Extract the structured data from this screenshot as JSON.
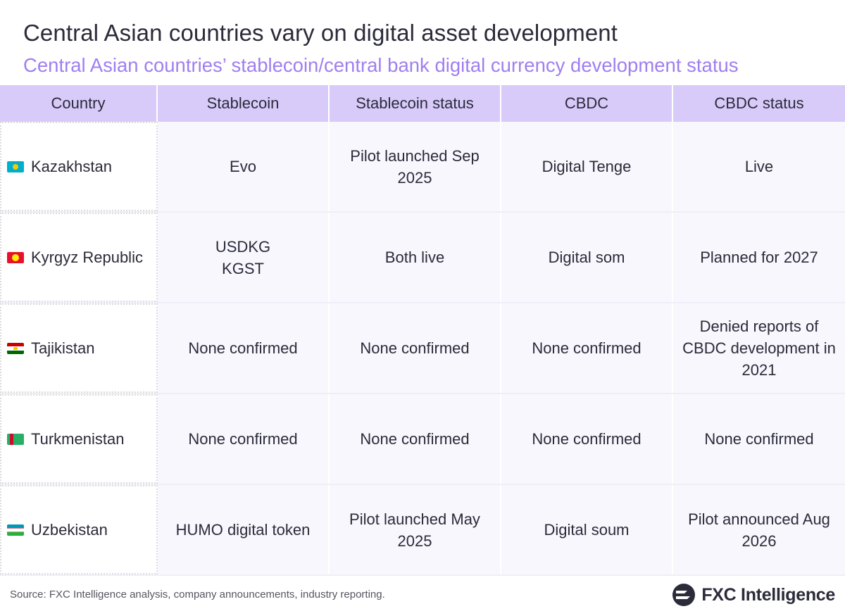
{
  "title": "Central Asian countries vary on digital asset development",
  "subtitle": "Central Asian countries’ stablecoin/central bank digital currency development status",
  "chart_data": {
    "type": "table",
    "columns": [
      "Country",
      "Stablecoin",
      "Stablecoin status",
      "CBDC",
      "CBDC status"
    ],
    "rows": [
      {
        "flag": "kazakhstan-flag-icon",
        "country": "Kazakhstan",
        "stablecoin": "Evo",
        "stablecoin_status": "Pilot launched Sep 2025",
        "cbdc": "Digital Tenge",
        "cbdc_status": "Live"
      },
      {
        "flag": "kyrgyz-flag-icon",
        "country": "Kyrgyz Republic",
        "stablecoin": "USDKG\nKGST",
        "stablecoin_status": "Both live",
        "cbdc": "Digital som",
        "cbdc_status": "Planned for 2027"
      },
      {
        "flag": "tajikistan-flag-icon",
        "country": "Tajikistan",
        "stablecoin": "None confirmed",
        "stablecoin_status": "None confirmed",
        "cbdc": "None confirmed",
        "cbdc_status": "Denied reports of CBDC development in 2021"
      },
      {
        "flag": "turkmenistan-flag-icon",
        "country": "Turkmenistan",
        "stablecoin": "None confirmed",
        "stablecoin_status": "None confirmed",
        "cbdc": "None confirmed",
        "cbdc_status": "None confirmed"
      },
      {
        "flag": "uzbekistan-flag-icon",
        "country": "Uzbekistan",
        "stablecoin": "HUMO digital token",
        "stablecoin_status": "Pilot launched May 2025",
        "cbdc": "Digital soum",
        "cbdc_status": "Pilot announced Aug 2026"
      }
    ]
  },
  "footer": {
    "source": "Source: FXC Intelligence analysis, company announcements, industry reporting.",
    "logo_text": "FXC Intelligence"
  },
  "colors": {
    "header_bg": "#d8cbfa",
    "subtitle": "#a07ef0",
    "cell_bg": "#f8f7fd"
  }
}
